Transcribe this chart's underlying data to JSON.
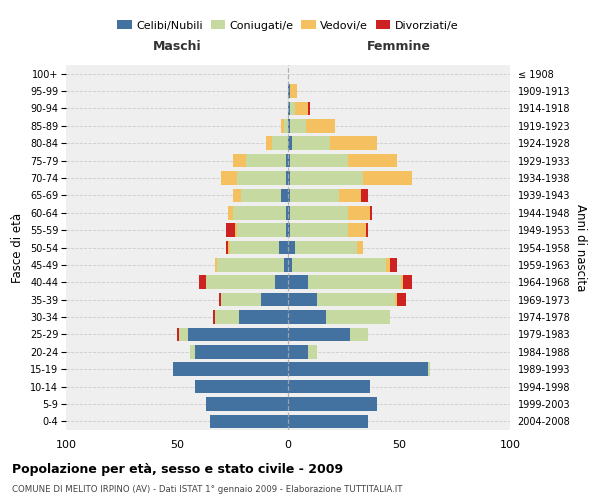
{
  "age_groups": [
    "0-4",
    "5-9",
    "10-14",
    "15-19",
    "20-24",
    "25-29",
    "30-34",
    "35-39",
    "40-44",
    "45-49",
    "50-54",
    "55-59",
    "60-64",
    "65-69",
    "70-74",
    "75-79",
    "80-84",
    "85-89",
    "90-94",
    "95-99",
    "100+"
  ],
  "birth_years": [
    "2004-2008",
    "1999-2003",
    "1994-1998",
    "1989-1993",
    "1984-1988",
    "1979-1983",
    "1974-1978",
    "1969-1973",
    "1964-1968",
    "1959-1963",
    "1954-1958",
    "1949-1953",
    "1944-1948",
    "1939-1943",
    "1934-1938",
    "1929-1933",
    "1924-1928",
    "1919-1923",
    "1914-1918",
    "1909-1913",
    "≤ 1908"
  ],
  "maschi": {
    "celibe": [
      35,
      37,
      42,
      52,
      42,
      45,
      22,
      12,
      6,
      2,
      4,
      1,
      1,
      3,
      1,
      1,
      0,
      0,
      0,
      0,
      0
    ],
    "coniugato": [
      0,
      0,
      0,
      0,
      2,
      4,
      11,
      18,
      31,
      30,
      22,
      22,
      24,
      18,
      22,
      18,
      7,
      2,
      0,
      0,
      0
    ],
    "vedovo": [
      0,
      0,
      0,
      0,
      0,
      0,
      0,
      0,
      0,
      1,
      1,
      1,
      2,
      4,
      7,
      6,
      3,
      1,
      0,
      0,
      0
    ],
    "divorziato": [
      0,
      0,
      0,
      0,
      0,
      1,
      1,
      1,
      3,
      0,
      1,
      4,
      0,
      0,
      0,
      0,
      0,
      0,
      0,
      0,
      0
    ]
  },
  "femmine": {
    "nubile": [
      36,
      40,
      37,
      63,
      9,
      28,
      17,
      13,
      9,
      2,
      3,
      1,
      1,
      1,
      1,
      1,
      2,
      1,
      1,
      1,
      0
    ],
    "coniugata": [
      0,
      0,
      0,
      1,
      4,
      8,
      29,
      35,
      42,
      42,
      28,
      26,
      26,
      22,
      33,
      26,
      17,
      7,
      2,
      0,
      0
    ],
    "vedova": [
      0,
      0,
      0,
      0,
      0,
      0,
      0,
      1,
      1,
      2,
      3,
      8,
      10,
      10,
      22,
      22,
      21,
      13,
      6,
      3,
      0
    ],
    "divorziata": [
      0,
      0,
      0,
      0,
      0,
      0,
      0,
      4,
      4,
      3,
      0,
      1,
      1,
      3,
      0,
      0,
      0,
      0,
      1,
      0,
      0
    ]
  },
  "colors": {
    "celibe": "#4472a0",
    "coniugato": "#c5d9a0",
    "vedovo": "#f5c060",
    "divorziato": "#cc2222"
  },
  "xlim": 100,
  "title": "Popolazione per età, sesso e stato civile - 2009",
  "subtitle": "COMUNE DI MELITO IRPINO (AV) - Dati ISTAT 1° gennaio 2009 - Elaborazione TUTTITALIA.IT",
  "ylabel_left": "Fasce di età",
  "ylabel_right": "Anni di nascita",
  "xlabel_left": "Maschi",
  "xlabel_right": "Femmine",
  "bg_color": "#efefef",
  "grid_color": "#cccccc"
}
